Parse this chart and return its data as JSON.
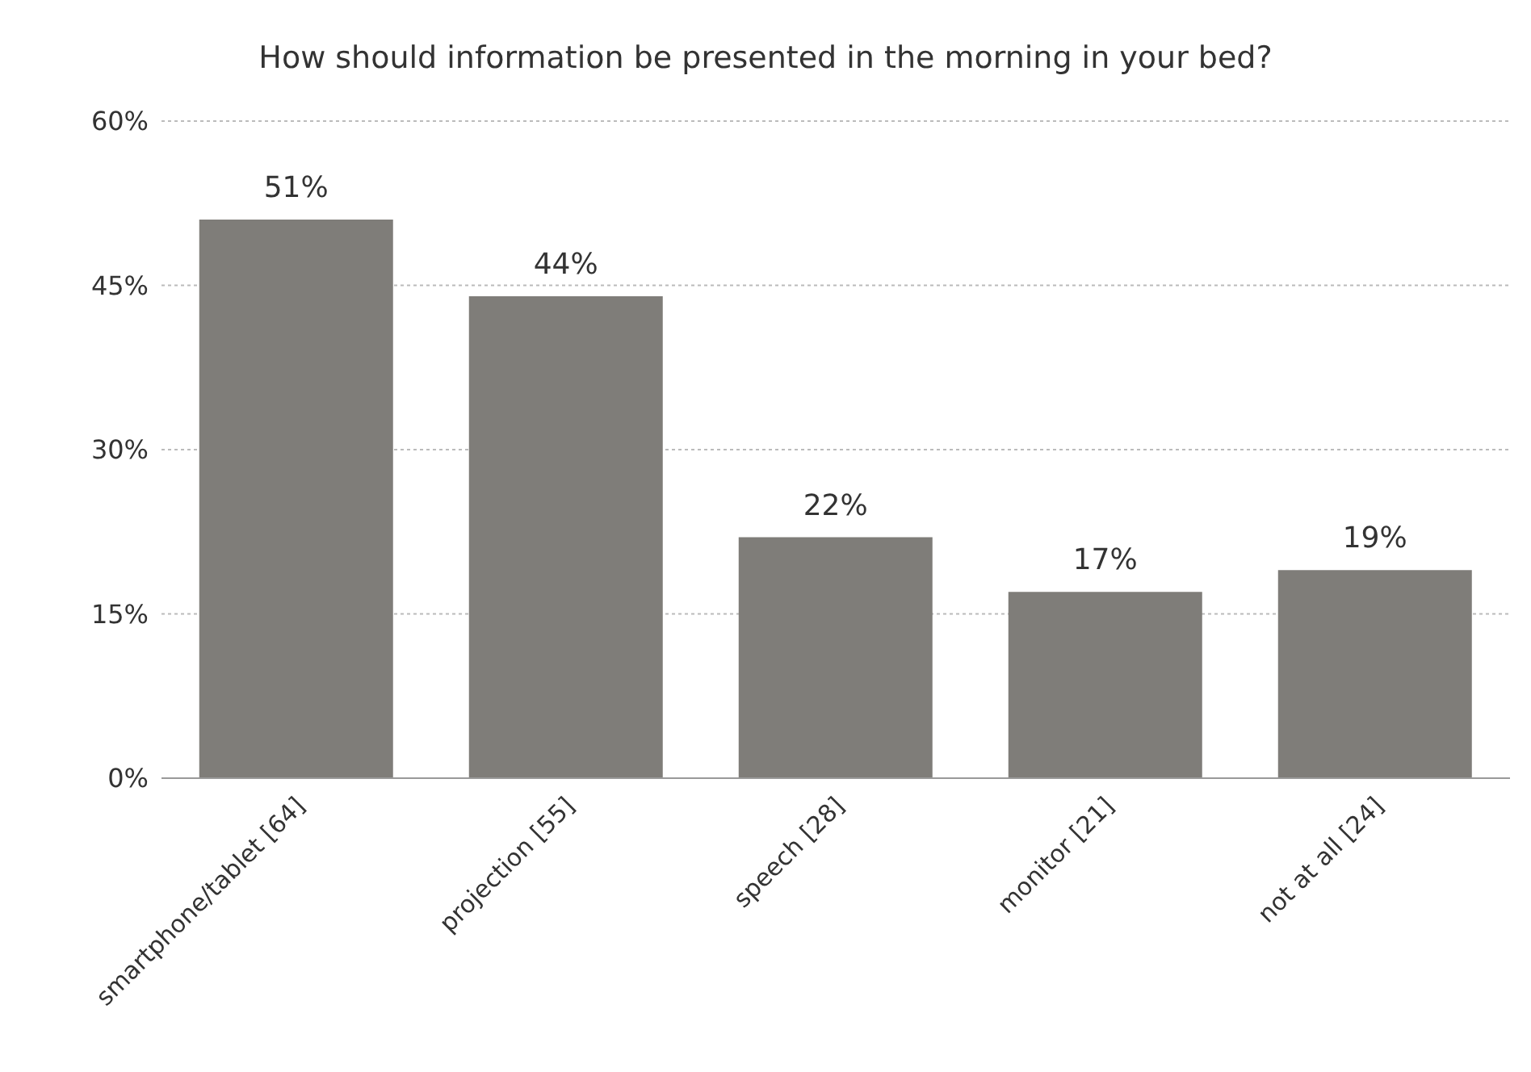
{
  "chart_data": {
    "type": "bar",
    "title": "How should information be presented in the morning in your bed?",
    "categories": [
      "smartphone/tablet [64]",
      "projection [55]",
      "speech [28]",
      "monitor [21]",
      "not at all [24]"
    ],
    "values": [
      51,
      44,
      22,
      17,
      19
    ],
    "value_labels": [
      "51%",
      "44%",
      "22%",
      "17%",
      "19%"
    ],
    "color": "#7f7d79",
    "ylim": [
      0,
      60
    ],
    "yticks": [
      {
        "value": 0,
        "label": "0%"
      },
      {
        "value": 15,
        "label": "15%"
      },
      {
        "value": 30,
        "label": "30%"
      },
      {
        "value": 45,
        "label": "45%"
      },
      {
        "value": 60,
        "label": "60%"
      }
    ],
    "grid": "y",
    "legend": false
  }
}
